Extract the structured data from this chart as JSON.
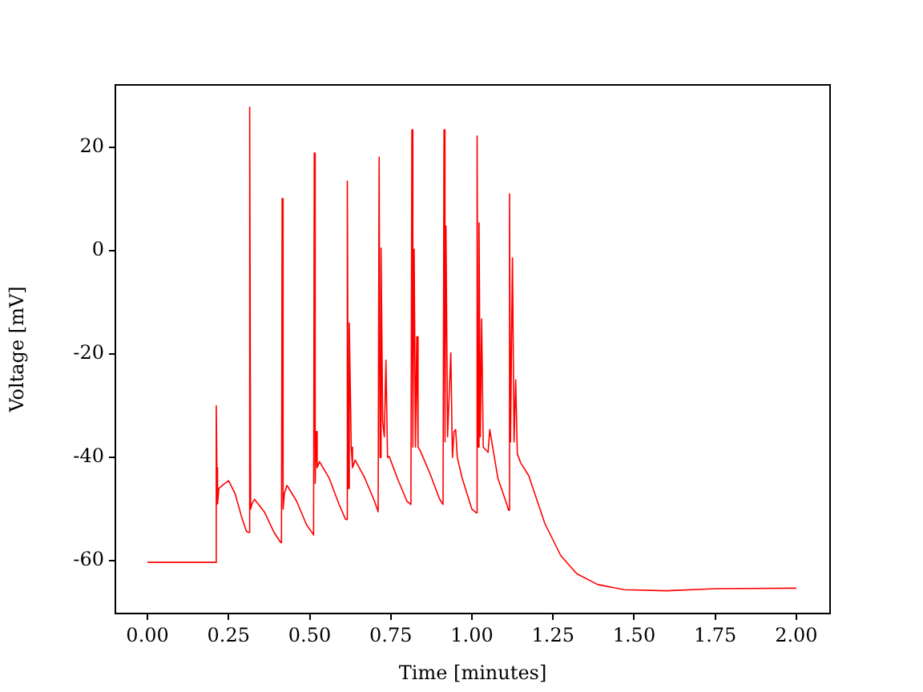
{
  "chart_data": {
    "type": "line",
    "xlabel": "Time [minutes]",
    "ylabel": "Voltage [mV]",
    "x": [
      0,
      0.1,
      0.21,
      0.212,
      0.214,
      0.216,
      0.22,
      0.235,
      0.25,
      0.27,
      0.29,
      0.305,
      0.312,
      0.315,
      0.318,
      0.322,
      0.33,
      0.36,
      0.39,
      0.41,
      0.413,
      0.415,
      0.418,
      0.422,
      0.43,
      0.46,
      0.49,
      0.51,
      0.512,
      0.514,
      0.517,
      0.52,
      0.523,
      0.53,
      0.56,
      0.59,
      0.61,
      0.613,
      0.616,
      0.619,
      0.622,
      0.625,
      0.628,
      0.632,
      0.64,
      0.67,
      0.7,
      0.711,
      0.714,
      0.717,
      0.72,
      0.725,
      0.73,
      0.735,
      0.74,
      0.745,
      0.77,
      0.8,
      0.812,
      0.815,
      0.818,
      0.822,
      0.826,
      0.83,
      0.834,
      0.84,
      0.87,
      0.9,
      0.911,
      0.914,
      0.917,
      0.92,
      0.925,
      0.935,
      0.94,
      0.945,
      0.95,
      0.955,
      0.97,
      1.0,
      1.013,
      1.016,
      1.019,
      1.022,
      1.026,
      1.03,
      1.035,
      1.05,
      1.055,
      1.08,
      1.11,
      1.113,
      1.116,
      1.119,
      1.125,
      1.13,
      1.135,
      1.14,
      1.15,
      1.175,
      1.225,
      1.274,
      1.323,
      1.388,
      1.47,
      1.6,
      1.75,
      2.0
    ],
    "values": [
      -60.3,
      -60.3,
      -60.3,
      -30,
      -42,
      -49,
      -46,
      -45.2,
      -44.5,
      -47,
      -51.5,
      -54.3,
      -54.5,
      27.8,
      -50,
      -49,
      -48.1,
      -50.5,
      -54.5,
      -56.4,
      -56.5,
      10.1,
      -50,
      -47,
      -45.4,
      -48.5,
      -53,
      -54.8,
      -55,
      18.9,
      -45,
      -35,
      -42,
      -40.8,
      -44,
      -49,
      -51.9,
      -52,
      13.5,
      -46,
      -14,
      -25.6,
      -38,
      -42,
      -40.5,
      -44,
      -48.5,
      -50.5,
      18.1,
      -40,
      0.5,
      -33,
      -36,
      -21.2,
      -40,
      -39.8,
      -44,
      -48.5,
      -49.1,
      23.4,
      -38,
      0.3,
      -38,
      -16.6,
      -38,
      -38.6,
      -43,
      -48,
      -49.1,
      23.4,
      -37,
      4.8,
      -36,
      -19.7,
      -40,
      -35,
      -34.6,
      -40,
      -44,
      -50,
      -50.7,
      22.2,
      -38,
      5.4,
      -36,
      -13.2,
      -38,
      -39,
      -34.6,
      -44,
      -49.5,
      -50.2,
      11,
      -37,
      -1.4,
      -37,
      -25,
      -39.3,
      -41,
      -43.5,
      -52.8,
      -59,
      -62.5,
      -64.6,
      -65.6,
      -65.8,
      -65.4,
      -65.3
    ],
    "color": "#ff0000",
    "marker": "none",
    "line_style": "solid",
    "grid": false,
    "legend": false,
    "xlim": [
      -0.099,
      2.104
    ],
    "ylim": [
      -70.2,
      32.1
    ],
    "xticks": [
      {
        "value": 0,
        "label": "0.00"
      },
      {
        "value": 0.25,
        "label": "0.25"
      },
      {
        "value": 0.5,
        "label": "0.50"
      },
      {
        "value": 0.75,
        "label": "0.75"
      },
      {
        "value": 1,
        "label": "1.00"
      },
      {
        "value": 1.25,
        "label": "1.25"
      },
      {
        "value": 1.5,
        "label": "1.50"
      },
      {
        "value": 1.75,
        "label": "1.75"
      },
      {
        "value": 2,
        "label": "2.00"
      }
    ],
    "yticks": [
      -60,
      -40,
      -20,
      0,
      20
    ]
  }
}
